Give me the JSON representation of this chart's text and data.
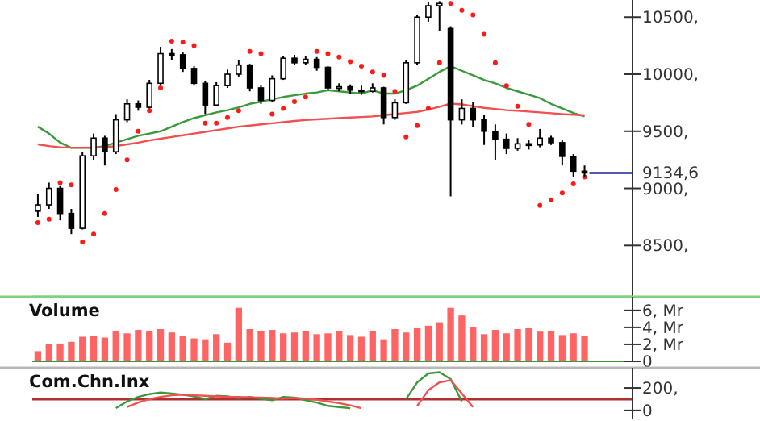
{
  "chart_data": [
    {
      "type": "candlestick",
      "color": "#000000",
      "categories": [
        null,
        null,
        null,
        null,
        null,
        null,
        null,
        null,
        null,
        null,
        null,
        null,
        null,
        null,
        null,
        null,
        null,
        null,
        null,
        null,
        null,
        null,
        null,
        null,
        null,
        null,
        null,
        null,
        null,
        null,
        null,
        null,
        null,
        null,
        null,
        null,
        null,
        null,
        null,
        null,
        null,
        null,
        null,
        null,
        null,
        null,
        null,
        null,
        null,
        null
      ],
      "ohlc": [
        [
          8800,
          8950,
          8750,
          8855
        ],
        [
          8855,
          9050,
          8820,
          9000
        ],
        [
          9000,
          9020,
          8720,
          8780
        ],
        [
          8780,
          8820,
          8600,
          8650
        ],
        [
          8650,
          9320,
          8640,
          9285
        ],
        [
          9285,
          9480,
          9250,
          9440
        ],
        [
          9440,
          9460,
          9200,
          9320
        ],
        [
          9320,
          9650,
          9300,
          9600
        ],
        [
          9600,
          9780,
          9580,
          9740
        ],
        [
          9740,
          9770,
          9680,
          9710
        ],
        [
          9710,
          9950,
          9700,
          9920
        ],
        [
          9920,
          10240,
          9900,
          10180
        ],
        [
          10180,
          10220,
          10120,
          10170
        ],
        [
          10170,
          10190,
          10020,
          10050
        ],
        [
          10050,
          10070,
          9900,
          9920
        ],
        [
          9920,
          9940,
          9650,
          9730
        ],
        [
          9730,
          9930,
          9720,
          9900
        ],
        [
          9900,
          10040,
          9880,
          10000
        ],
        [
          10000,
          10120,
          9980,
          10080
        ],
        [
          10080,
          10090,
          9850,
          9880
        ],
        [
          9880,
          9900,
          9740,
          9770
        ],
        [
          9770,
          9990,
          9760,
          9960
        ],
        [
          9960,
          10160,
          9950,
          10140
        ],
        [
          10140,
          10170,
          10080,
          10100
        ],
        [
          10100,
          10160,
          10080,
          10130
        ],
        [
          10130,
          10150,
          10030,
          10060
        ],
        [
          10060,
          10070,
          9860,
          9880
        ],
        [
          9880,
          9920,
          9850,
          9890
        ],
        [
          9890,
          9910,
          9830,
          9860
        ],
        [
          9860,
          9900,
          9820,
          9850
        ],
        [
          9850,
          9920,
          9840,
          9880
        ],
        [
          9880,
          9890,
          9560,
          9620
        ],
        [
          9620,
          9780,
          9600,
          9750
        ],
        [
          9750,
          10120,
          9740,
          10100
        ],
        [
          10100,
          10520,
          10080,
          10500
        ],
        [
          10500,
          10630,
          10460,
          10600
        ],
        [
          10600,
          10640,
          10380,
          10620
        ],
        [
          10400,
          10420,
          8930,
          9600
        ],
        [
          9600,
          9780,
          9560,
          9700
        ],
        [
          9700,
          9760,
          9540,
          9600
        ],
        [
          9600,
          9640,
          9380,
          9500
        ],
        [
          9500,
          9560,
          9250,
          9430
        ],
        [
          9430,
          9480,
          9300,
          9350
        ],
        [
          9350,
          9440,
          9330,
          9390
        ],
        [
          9390,
          9420,
          9340,
          9380
        ],
        [
          9380,
          9520,
          9360,
          9440
        ],
        [
          9440,
          9460,
          9380,
          9400
        ],
        [
          9400,
          9420,
          9200,
          9280
        ],
        [
          9280,
          9300,
          9100,
          9150
        ],
        [
          9150,
          9200,
          9100,
          9134.6
        ]
      ],
      "series": [
        {
          "type": "line",
          "color": "#3a9a3a",
          "values": [
            9540,
            9480,
            9400,
            9355,
            9355,
            9355,
            9370,
            9400,
            9430,
            9460,
            9480,
            9500,
            9540,
            9580,
            9615,
            9640,
            9665,
            9685,
            9710,
            9740,
            9760,
            9780,
            9800,
            9815,
            9830,
            9840,
            9860,
            9850,
            9840,
            9830,
            9860,
            9830,
            9830,
            9860,
            9900,
            9960,
            10020,
            10070,
            10030,
            9990,
            9950,
            9920,
            9880,
            9850,
            9820,
            9790,
            9740,
            9700,
            9660,
            9630
          ]
        },
        {
          "type": "line",
          "color": "#f05050",
          "values": [
            9385,
            9370,
            9360,
            9356,
            9356,
            9358,
            9360,
            9370,
            9385,
            9400,
            9420,
            9435,
            9450,
            9465,
            9480,
            9495,
            9510,
            9525,
            9540,
            9550,
            9560,
            9570,
            9580,
            9590,
            9598,
            9604,
            9610,
            9616,
            9620,
            9625,
            9630,
            9640,
            9650,
            9660,
            9670,
            9690,
            9715,
            9742,
            9735,
            9720,
            9705,
            9695,
            9685,
            9680,
            9672,
            9665,
            9658,
            9650,
            9645,
            9640
          ]
        },
        {
          "type": "scatter",
          "color": "#ff1a1a",
          "marker": "circle",
          "values": [
            8700,
            8730,
            9050,
            9030,
            8530,
            8600,
            8780,
            8990,
            9250,
            9500,
            9680,
            9880,
            10290,
            10280,
            10250,
            9570,
            9570,
            9620,
            9680,
            10200,
            10180,
            9650,
            9700,
            9760,
            9800,
            10200,
            10180,
            10150,
            10110,
            10070,
            10020,
            9990,
            9850,
            9450,
            9550,
            9700,
            10100,
            10620,
            10560,
            10520,
            10350,
            10100,
            9900,
            9720,
            9560,
            8850,
            8900,
            8960,
            9040,
            9100
          ]
        }
      ],
      "ylim": [
        8050,
        10650
      ],
      "yticks": [
        {
          "value": 8500,
          "label": "8500,"
        },
        {
          "value": 9000,
          "label": "9000,"
        },
        {
          "value": 9500,
          "label": "9500,"
        },
        {
          "value": 10000,
          "label": "10000,"
        },
        {
          "value": 10500,
          "label": "10500,"
        }
      ],
      "ref_lines": [
        {
          "axis": "y",
          "value": 9134.6,
          "label": "9134,6",
          "color": "#5058b8"
        }
      ],
      "tick_labels": "y"
    },
    {
      "type": "bar",
      "title": "Volume",
      "color": "#ff6464",
      "categories": [
        null,
        null,
        null,
        null,
        null,
        null,
        null,
        null,
        null,
        null,
        null,
        null,
        null,
        null,
        null,
        null,
        null,
        null,
        null,
        null,
        null,
        null,
        null,
        null,
        null,
        null,
        null,
        null,
        null,
        null,
        null,
        null,
        null,
        null,
        null,
        null,
        null,
        null,
        null,
        null,
        null,
        null,
        null,
        null,
        null,
        null,
        null,
        null,
        null,
        null
      ],
      "values": [
        1.2,
        2.0,
        2.1,
        2.3,
        2.9,
        3.0,
        2.8,
        3.6,
        3.3,
        3.7,
        3.6,
        3.8,
        3.4,
        3.0,
        2.7,
        2.6,
        3.2,
        2.2,
        6.3,
        3.8,
        3.6,
        3.7,
        3.3,
        3.4,
        3.6,
        3.2,
        3.3,
        3.6,
        3.1,
        2.9,
        3.6,
        2.6,
        3.8,
        3.4,
        3.9,
        4.2,
        4.6,
        6.3,
        5.4,
        4.0,
        3.2,
        3.7,
        3.3,
        3.8,
        3.9,
        3.5,
        3.6,
        3.1,
        3.3,
        3.0
      ],
      "ylim": [
        0,
        7.6
      ],
      "yticks": [
        {
          "value": 0,
          "label": "0"
        },
        {
          "value": 2,
          "label": "2, Mr"
        },
        {
          "value": 4,
          "label": "4, Mr"
        },
        {
          "value": 6,
          "label": "6, Mr"
        }
      ],
      "tick_labels": "y"
    },
    {
      "type": "line",
      "title": "Com.Chn.Inx",
      "categories": [
        null,
        null,
        null,
        null,
        null,
        null,
        null,
        null,
        null,
        null,
        null,
        null,
        null,
        null,
        null,
        null,
        null,
        null,
        null,
        null,
        null,
        null,
        null,
        null,
        null,
        null,
        null,
        null,
        null,
        null,
        null,
        null,
        null,
        null,
        null,
        null,
        null,
        null,
        null,
        null,
        null,
        null,
        null,
        null,
        null,
        null,
        null,
        null,
        null,
        null
      ],
      "series": [
        {
          "color": "#3a9a3a",
          "values": [
            null,
            null,
            null,
            null,
            null,
            null,
            null,
            20,
            80,
            120,
            145,
            160,
            150,
            140,
            125,
            100,
            130,
            125,
            110,
            120,
            105,
            90,
            120,
            115,
            90,
            70,
            40,
            30,
            20,
            null,
            null,
            null,
            null,
            100,
            250,
            330,
            340,
            280,
            80,
            null,
            null,
            null,
            null,
            null,
            null,
            null,
            null,
            null,
            null,
            null
          ]
        },
        {
          "color": "#f05050",
          "values": [
            null,
            null,
            null,
            null,
            null,
            null,
            null,
            null,
            30,
            70,
            100,
            120,
            135,
            140,
            135,
            130,
            125,
            120,
            120,
            115,
            115,
            110,
            105,
            110,
            105,
            95,
            80,
            65,
            45,
            20,
            null,
            null,
            null,
            null,
            40,
            180,
            250,
            270,
            150,
            30,
            null,
            null,
            null,
            null,
            null,
            null,
            null,
            null,
            null,
            null
          ]
        }
      ],
      "ylim": [
        -80,
        380
      ],
      "yticks": [
        {
          "value": 0,
          "label": "0"
        },
        {
          "value": 200,
          "label": "200,"
        }
      ],
      "ref_lines": [
        {
          "axis": "y",
          "value": 100,
          "color": "#b03030"
        }
      ],
      "tick_labels": "y"
    }
  ]
}
